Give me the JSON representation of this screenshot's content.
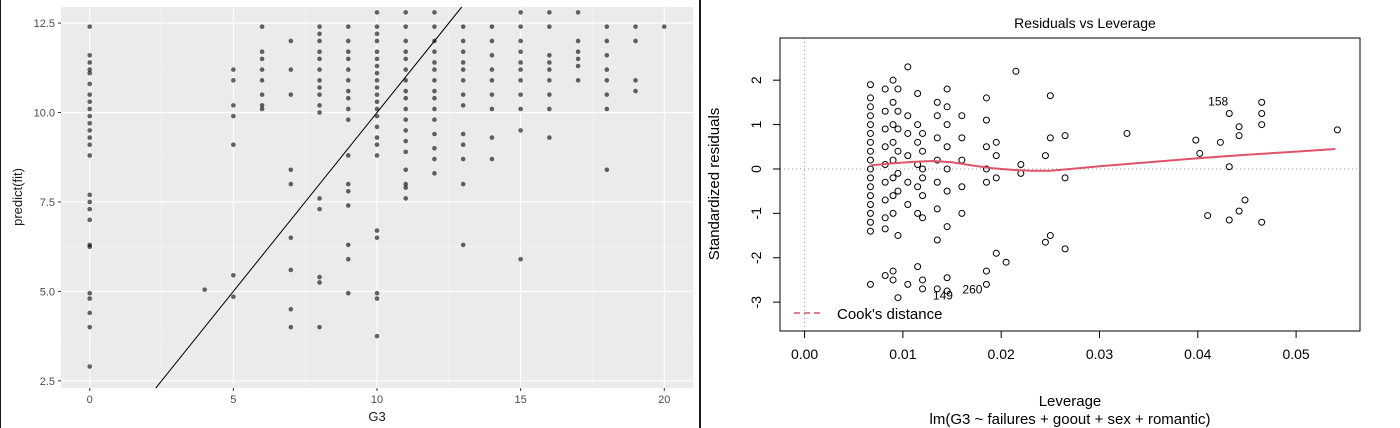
{
  "chart_data": [
    {
      "type": "scatter",
      "title": "",
      "xlabel": "G3",
      "ylabel": "predict(fit)",
      "xlim": [
        -1,
        21
      ],
      "ylim": [
        2.3,
        12.95
      ],
      "x_ticks": [
        "0",
        "5",
        "10",
        "15",
        "20"
      ],
      "y_ticks": [
        "2.5",
        "5.0",
        "7.5",
        "10.0",
        "12.5"
      ],
      "x_tick_values": [
        0,
        5,
        10,
        15,
        20
      ],
      "y_tick_values": [
        2.5,
        5.0,
        7.5,
        10.0,
        12.5
      ],
      "grid": true,
      "reference_line": {
        "intercept": 0,
        "slope": 1
      },
      "point_color": "#000000",
      "panel_color": "#ebebeb",
      "points": [
        [
          0,
          12.4
        ],
        [
          0,
          11.6
        ],
        [
          0,
          11.4
        ],
        [
          0,
          11.2
        ],
        [
          0,
          11.1
        ],
        [
          0,
          10.8
        ],
        [
          0,
          10.5
        ],
        [
          0,
          10.3
        ],
        [
          0,
          10.1
        ],
        [
          0,
          9.9
        ],
        [
          0,
          9.7
        ],
        [
          0,
          9.5
        ],
        [
          0,
          9.3
        ],
        [
          0,
          9.1
        ],
        [
          0,
          8.8
        ],
        [
          0,
          7.7
        ],
        [
          0,
          7.5
        ],
        [
          0,
          7.3
        ],
        [
          0,
          7.0
        ],
        [
          0,
          6.3
        ],
        [
          0,
          6.25
        ],
        [
          0,
          4.95
        ],
        [
          0,
          4.8
        ],
        [
          0,
          4.4
        ],
        [
          0,
          4.0
        ],
        [
          0,
          2.9
        ],
        [
          4,
          5.05
        ],
        [
          5,
          11.2
        ],
        [
          5,
          10.9
        ],
        [
          5,
          10.2
        ],
        [
          5,
          9.9
        ],
        [
          5,
          9.1
        ],
        [
          5,
          5.45
        ],
        [
          5,
          4.85
        ],
        [
          6,
          12.4
        ],
        [
          6,
          11.7
        ],
        [
          6,
          11.5
        ],
        [
          6,
          11.2
        ],
        [
          6,
          10.9
        ],
        [
          6,
          10.5
        ],
        [
          6,
          10.2
        ],
        [
          6,
          10.1
        ],
        [
          7,
          12.0
        ],
        [
          7,
          11.2
        ],
        [
          7,
          10.5
        ],
        [
          7,
          8.4
        ],
        [
          7,
          8.0
        ],
        [
          7,
          6.5
        ],
        [
          7,
          5.6
        ],
        [
          7,
          4.5
        ],
        [
          7,
          4.0
        ],
        [
          8,
          12.4
        ],
        [
          8,
          12.2
        ],
        [
          8,
          12.0
        ],
        [
          8,
          11.7
        ],
        [
          8,
          11.5
        ],
        [
          8,
          11.2
        ],
        [
          8,
          10.9
        ],
        [
          8,
          10.7
        ],
        [
          8,
          10.5
        ],
        [
          8,
          10.2
        ],
        [
          8,
          10.0
        ],
        [
          8,
          7.6
        ],
        [
          8,
          7.3
        ],
        [
          8,
          5.4
        ],
        [
          8,
          5.25
        ],
        [
          8,
          4.0
        ],
        [
          9,
          12.4
        ],
        [
          9,
          12.0
        ],
        [
          9,
          11.7
        ],
        [
          9,
          11.5
        ],
        [
          9,
          11.2
        ],
        [
          9,
          10.9
        ],
        [
          9,
          10.6
        ],
        [
          9,
          10.4
        ],
        [
          9,
          10.1
        ],
        [
          9,
          9.8
        ],
        [
          9,
          8.8
        ],
        [
          9,
          8.0
        ],
        [
          9,
          7.8
        ],
        [
          9,
          7.4
        ],
        [
          9,
          6.3
        ],
        [
          9,
          5.9
        ],
        [
          9,
          4.95
        ],
        [
          10,
          12.8
        ],
        [
          10,
          12.4
        ],
        [
          10,
          12.2
        ],
        [
          10,
          12.0
        ],
        [
          10,
          11.7
        ],
        [
          10,
          11.5
        ],
        [
          10,
          11.3
        ],
        [
          10,
          11.1
        ],
        [
          10,
          10.9
        ],
        [
          10,
          10.7
        ],
        [
          10,
          10.5
        ],
        [
          10,
          10.3
        ],
        [
          10,
          10.1
        ],
        [
          10,
          9.9
        ],
        [
          10,
          9.6
        ],
        [
          10,
          9.3
        ],
        [
          10,
          9.1
        ],
        [
          10,
          8.8
        ],
        [
          10,
          6.7
        ],
        [
          10,
          6.5
        ],
        [
          10,
          4.95
        ],
        [
          10,
          4.8
        ],
        [
          10,
          3.75
        ],
        [
          11,
          12.8
        ],
        [
          11,
          12.4
        ],
        [
          11,
          12.0
        ],
        [
          11,
          11.7
        ],
        [
          11,
          11.5
        ],
        [
          11,
          11.2
        ],
        [
          11,
          10.9
        ],
        [
          11,
          10.6
        ],
        [
          11,
          10.4
        ],
        [
          11,
          10.1
        ],
        [
          11,
          9.8
        ],
        [
          11,
          9.5
        ],
        [
          11,
          9.2
        ],
        [
          11,
          8.9
        ],
        [
          11,
          8.4
        ],
        [
          11,
          8.0
        ],
        [
          11,
          7.9
        ],
        [
          11,
          7.6
        ],
        [
          12,
          12.8
        ],
        [
          12,
          12.4
        ],
        [
          12,
          12.0
        ],
        [
          12,
          11.7
        ],
        [
          12,
          11.4
        ],
        [
          12,
          11.2
        ],
        [
          12,
          10.9
        ],
        [
          12,
          10.6
        ],
        [
          12,
          10.4
        ],
        [
          12,
          10.1
        ],
        [
          12,
          9.8
        ],
        [
          12,
          9.4
        ],
        [
          12,
          9.0
        ],
        [
          12,
          8.7
        ],
        [
          12,
          8.3
        ],
        [
          13,
          12.4
        ],
        [
          13,
          12.0
        ],
        [
          13,
          11.7
        ],
        [
          13,
          11.4
        ],
        [
          13,
          11.2
        ],
        [
          13,
          10.9
        ],
        [
          13,
          10.5
        ],
        [
          13,
          10.2
        ],
        [
          13,
          9.4
        ],
        [
          13,
          9.1
        ],
        [
          13,
          8.7
        ],
        [
          13,
          8.0
        ],
        [
          13,
          6.3
        ],
        [
          14,
          12.4
        ],
        [
          14,
          12.0
        ],
        [
          14,
          11.6
        ],
        [
          14,
          11.2
        ],
        [
          14,
          10.9
        ],
        [
          14,
          10.5
        ],
        [
          14,
          10.1
        ],
        [
          14,
          9.3
        ],
        [
          14,
          8.7
        ],
        [
          15,
          12.8
        ],
        [
          15,
          12.4
        ],
        [
          15,
          12.0
        ],
        [
          15,
          11.7
        ],
        [
          15,
          11.4
        ],
        [
          15,
          11.2
        ],
        [
          15,
          10.9
        ],
        [
          15,
          10.5
        ],
        [
          15,
          10.1
        ],
        [
          15,
          9.5
        ],
        [
          15,
          5.9
        ],
        [
          16,
          12.8
        ],
        [
          16,
          12.4
        ],
        [
          16,
          11.6
        ],
        [
          16,
          11.4
        ],
        [
          16,
          11.2
        ],
        [
          16,
          10.9
        ],
        [
          16,
          10.5
        ],
        [
          16,
          10.1
        ],
        [
          16,
          9.3
        ],
        [
          17,
          12.8
        ],
        [
          17,
          12.0
        ],
        [
          17,
          11.7
        ],
        [
          17,
          11.5
        ],
        [
          17,
          11.3
        ],
        [
          17,
          10.9
        ],
        [
          18,
          12.4
        ],
        [
          18,
          12.0
        ],
        [
          18,
          11.6
        ],
        [
          18,
          11.2
        ],
        [
          18,
          10.9
        ],
        [
          18,
          10.5
        ],
        [
          18,
          10.1
        ],
        [
          18,
          8.4
        ],
        [
          19,
          12.4
        ],
        [
          19,
          12.0
        ],
        [
          19,
          10.9
        ],
        [
          19,
          10.6
        ],
        [
          20,
          12.4
        ]
      ]
    },
    {
      "type": "scatter",
      "title": "Residuals vs Leverage",
      "xlabel": "Leverage",
      "sublabel": "lm(G3 ~ failures + goout + sex + romantic)",
      "ylabel": "Standardized residuals",
      "xlim": [
        -0.0025,
        0.0565
      ],
      "ylim": [
        -3.65,
        2.95
      ],
      "x_ticks": [
        "0.00",
        "0.01",
        "0.02",
        "0.03",
        "0.04",
        "0.05"
      ],
      "y_ticks": [
        "-3",
        "-2",
        "-1",
        "0",
        "1",
        "2"
      ],
      "x_tick_values": [
        0,
        0.01,
        0.02,
        0.03,
        0.04,
        0.05
      ],
      "y_tick_values": [
        -3,
        -2,
        -1,
        0,
        1,
        2
      ],
      "legend": {
        "label": "Cook's distance",
        "position": "bottom-left",
        "style": "dashed",
        "color": "#df536b"
      },
      "smooth_color": "#df536b",
      "smooth_line": [
        [
          0.0067,
          0.08
        ],
        [
          0.009,
          0.13
        ],
        [
          0.011,
          0.16
        ],
        [
          0.013,
          0.18
        ],
        [
          0.015,
          0.15
        ],
        [
          0.017,
          0.08
        ],
        [
          0.019,
          0.02
        ],
        [
          0.021,
          -0.02
        ],
        [
          0.023,
          -0.04
        ],
        [
          0.025,
          -0.04
        ],
        [
          0.027,
          0.0
        ],
        [
          0.03,
          0.06
        ],
        [
          0.035,
          0.15
        ],
        [
          0.04,
          0.24
        ],
        [
          0.045,
          0.32
        ],
        [
          0.05,
          0.39
        ],
        [
          0.054,
          0.45
        ]
      ],
      "annotations": [
        {
          "label": "158",
          "x": 0.0435,
          "y": 1.52
        },
        {
          "label": "149",
          "x": 0.0155,
          "y": -2.85
        },
        {
          "label": "260",
          "x": 0.0185,
          "y": -2.72
        }
      ],
      "points": [
        [
          0.0067,
          1.9
        ],
        [
          0.0067,
          1.6
        ],
        [
          0.0067,
          1.4
        ],
        [
          0.0067,
          1.2
        ],
        [
          0.0067,
          1.0
        ],
        [
          0.0067,
          0.8
        ],
        [
          0.0067,
          0.6
        ],
        [
          0.0067,
          0.4
        ],
        [
          0.0067,
          0.2
        ],
        [
          0.0067,
          0.0
        ],
        [
          0.0067,
          -0.2
        ],
        [
          0.0067,
          -0.4
        ],
        [
          0.0067,
          -0.6
        ],
        [
          0.0067,
          -0.8
        ],
        [
          0.0067,
          -1.0
        ],
        [
          0.0067,
          -1.2
        ],
        [
          0.0067,
          -1.4
        ],
        [
          0.0067,
          -2.6
        ],
        [
          0.0082,
          1.8
        ],
        [
          0.0082,
          1.3
        ],
        [
          0.0082,
          0.9
        ],
        [
          0.0082,
          0.5
        ],
        [
          0.0082,
          0.1
        ],
        [
          0.0082,
          -0.3
        ],
        [
          0.0082,
          -0.7
        ],
        [
          0.0082,
          -1.1
        ],
        [
          0.0082,
          -1.35
        ],
        [
          0.0082,
          -2.4
        ],
        [
          0.009,
          2.0
        ],
        [
          0.009,
          1.5
        ],
        [
          0.009,
          1.0
        ],
        [
          0.009,
          0.6
        ],
        [
          0.009,
          0.2
        ],
        [
          0.009,
          -0.2
        ],
        [
          0.009,
          -0.6
        ],
        [
          0.009,
          -1.0
        ],
        [
          0.009,
          -2.3
        ],
        [
          0.009,
          -2.5
        ],
        [
          0.0095,
          1.8
        ],
        [
          0.0095,
          1.3
        ],
        [
          0.0095,
          0.9
        ],
        [
          0.0095,
          0.4
        ],
        [
          0.0095,
          -0.1
        ],
        [
          0.0095,
          -0.5
        ],
        [
          0.0095,
          -1.5
        ],
        [
          0.0095,
          -2.9
        ],
        [
          0.0105,
          2.3
        ],
        [
          0.0105,
          1.2
        ],
        [
          0.0105,
          0.8
        ],
        [
          0.0105,
          0.3
        ],
        [
          0.0105,
          -0.3
        ],
        [
          0.0105,
          -0.8
        ],
        [
          0.0105,
          -2.6
        ],
        [
          0.0115,
          1.7
        ],
        [
          0.0115,
          1.0
        ],
        [
          0.0115,
          0.6
        ],
        [
          0.0115,
          0.1
        ],
        [
          0.0115,
          -0.4
        ],
        [
          0.0115,
          -1.0
        ],
        [
          0.0115,
          -2.2
        ],
        [
          0.012,
          0.8
        ],
        [
          0.012,
          0.4
        ],
        [
          0.012,
          0.0
        ],
        [
          0.012,
          -0.2
        ],
        [
          0.012,
          -0.6
        ],
        [
          0.012,
          -1.1
        ],
        [
          0.012,
          -2.5
        ],
        [
          0.012,
          -2.7
        ],
        [
          0.0135,
          1.5
        ],
        [
          0.0135,
          1.2
        ],
        [
          0.0135,
          0.7
        ],
        [
          0.0135,
          0.2
        ],
        [
          0.0135,
          -0.3
        ],
        [
          0.0135,
          -0.9
        ],
        [
          0.0135,
          -1.6
        ],
        [
          0.0135,
          -2.7
        ],
        [
          0.0145,
          1.8
        ],
        [
          0.0145,
          1.4
        ],
        [
          0.0145,
          1.0
        ],
        [
          0.0145,
          0.5
        ],
        [
          0.0145,
          0.0
        ],
        [
          0.0145,
          -0.5
        ],
        [
          0.0145,
          -1.3
        ],
        [
          0.0145,
          -2.45
        ],
        [
          0.0145,
          -2.75
        ],
        [
          0.016,
          1.2
        ],
        [
          0.016,
          0.7
        ],
        [
          0.016,
          0.2
        ],
        [
          0.016,
          -0.4
        ],
        [
          0.016,
          -1.0
        ],
        [
          0.0185,
          1.6
        ],
        [
          0.0185,
          1.1
        ],
        [
          0.0185,
          0.5
        ],
        [
          0.0185,
          0.0
        ],
        [
          0.0185,
          -0.3
        ],
        [
          0.0185,
          -2.3
        ],
        [
          0.0185,
          -2.6
        ],
        [
          0.0195,
          0.6
        ],
        [
          0.0195,
          0.3
        ],
        [
          0.0195,
          -0.2
        ],
        [
          0.0195,
          -1.9
        ],
        [
          0.0205,
          -2.1
        ],
        [
          0.0215,
          2.2
        ],
        [
          0.022,
          0.1
        ],
        [
          0.022,
          -0.1
        ],
        [
          0.0245,
          0.3
        ],
        [
          0.0245,
          -1.65
        ],
        [
          0.025,
          1.65
        ],
        [
          0.025,
          0.7
        ],
        [
          0.025,
          -1.5
        ],
        [
          0.0265,
          0.75
        ],
        [
          0.0265,
          -0.2
        ],
        [
          0.0265,
          -1.8
        ],
        [
          0.0328,
          0.8
        ],
        [
          0.0398,
          0.65
        ],
        [
          0.0402,
          0.35
        ],
        [
          0.041,
          -1.05
        ],
        [
          0.0423,
          0.6
        ],
        [
          0.0432,
          1.25
        ],
        [
          0.0432,
          0.05
        ],
        [
          0.0432,
          -1.15
        ],
        [
          0.0442,
          0.95
        ],
        [
          0.0442,
          0.75
        ],
        [
          0.0442,
          -0.95
        ],
        [
          0.0448,
          -0.7
        ],
        [
          0.0465,
          1.5
        ],
        [
          0.0465,
          1.25
        ],
        [
          0.0465,
          1.0
        ],
        [
          0.0465,
          -1.2
        ],
        [
          0.0542,
          0.88
        ]
      ]
    }
  ]
}
